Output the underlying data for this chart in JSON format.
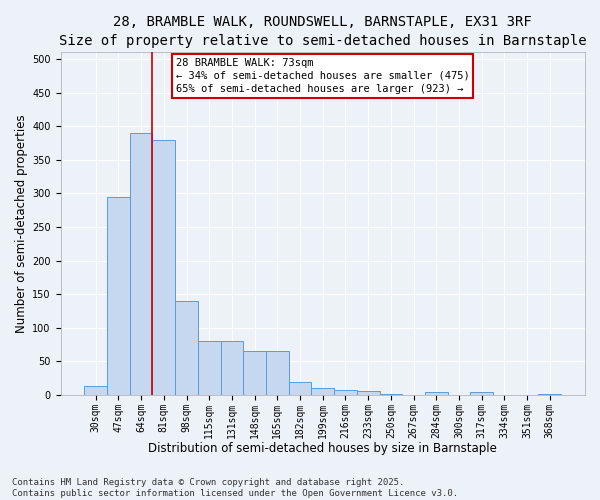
{
  "title_line1": "28, BRAMBLE WALK, ROUNDSWELL, BARNSTAPLE, EX31 3RF",
  "title_line2": "Size of property relative to semi-detached houses in Barnstaple",
  "xlabel": "Distribution of semi-detached houses by size in Barnstaple",
  "ylabel": "Number of semi-detached properties",
  "categories": [
    "30sqm",
    "47sqm",
    "64sqm",
    "81sqm",
    "98sqm",
    "115sqm",
    "131sqm",
    "148sqm",
    "165sqm",
    "182sqm",
    "199sqm",
    "216sqm",
    "233sqm",
    "250sqm",
    "267sqm",
    "284sqm",
    "300sqm",
    "317sqm",
    "334sqm",
    "351sqm",
    "368sqm"
  ],
  "values": [
    13,
    295,
    390,
    380,
    140,
    80,
    80,
    65,
    65,
    20,
    10,
    8,
    6,
    2,
    0,
    5,
    0,
    5,
    0,
    0,
    2
  ],
  "bar_color": "#c5d8f0",
  "bar_edge_color": "#5b9bd5",
  "red_line_color": "#cc0000",
  "annotation_text": "28 BRAMBLE WALK: 73sqm\n← 34% of semi-detached houses are smaller (475)\n65% of semi-detached houses are larger (923) →",
  "annotation_box_color": "#ffffff",
  "annotation_box_edge_color": "#cc0000",
  "footer_line1": "Contains HM Land Registry data © Crown copyright and database right 2025.",
  "footer_line2": "Contains public sector information licensed under the Open Government Licence v3.0.",
  "ylim": [
    0,
    510
  ],
  "yticks": [
    0,
    50,
    100,
    150,
    200,
    250,
    300,
    350,
    400,
    450,
    500
  ],
  "background_color": "#edf2f9",
  "grid_color": "#ffffff",
  "title_fontsize": 10,
  "subtitle_fontsize": 9,
  "axis_label_fontsize": 8.5,
  "tick_fontsize": 7,
  "annotation_fontsize": 7.5,
  "footer_fontsize": 6.5
}
